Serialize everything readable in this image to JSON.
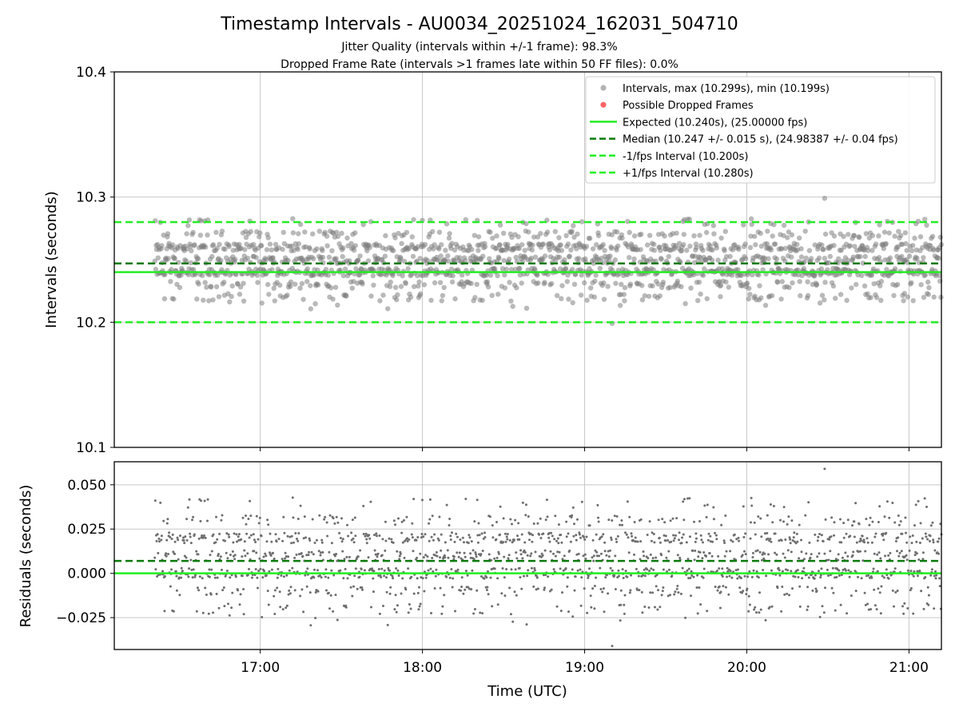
{
  "figure": {
    "title": "Timestamp Intervals - AU0034_20251024_162031_504710",
    "subtitle_jitter": "Jitter Quality (intervals within +/-1 frame): 98.3%",
    "subtitle_dropped": "Dropped Frame Rate (intervals >1 frames late within 50 FF files): 0.0%"
  },
  "colors": {
    "points": "#808080",
    "dropped": "#ff3333",
    "expected": "#22ee22",
    "median": "#0a7a0a",
    "limit": "#22ee22",
    "grid": "#c8c8c8"
  },
  "chart_data": [
    {
      "type": "scatter",
      "panel": "top",
      "ylabel": "Intervals (seconds)",
      "ylim": [
        10.1,
        10.4
      ],
      "yticks": [
        "10.1",
        "10.2",
        "10.3",
        "10.4"
      ],
      "ytick_values": [
        10.1,
        10.2,
        10.3,
        10.4
      ],
      "xlim_hours": [
        16.1,
        21.2
      ],
      "grid": true,
      "legend_position": "top-right",
      "legend": [
        {
          "label": "Intervals, max (10.299s), min (10.199s)",
          "kind": "point",
          "color": "#808080"
        },
        {
          "label": "Possible Dropped Frames",
          "kind": "point",
          "color": "#ff3333"
        },
        {
          "label": "Expected (10.240s), (25.00000 fps)",
          "kind": "solid",
          "color": "#22ee22"
        },
        {
          "label": "Median (10.247 +/- 0.015 s), (24.98387 +/- 0.04 fps)",
          "kind": "dashed",
          "color": "#0a7a0a"
        },
        {
          "label": "-1/fps Interval (10.200s)",
          "kind": "dashed",
          "color": "#22ee22"
        },
        {
          "label": "+1/fps Interval (10.280s)",
          "kind": "dashed",
          "color": "#22ee22"
        }
      ],
      "reference_lines": {
        "expected": 10.24,
        "median": 10.247,
        "minus_one_fps": 10.2,
        "plus_one_fps": 10.28
      },
      "series_summary": {
        "start_hour": 16.35,
        "end_hour": 21.2,
        "interval_seconds": 10.24,
        "max": 10.299,
        "min": 10.199,
        "levels": [
          10.22,
          10.23,
          10.24,
          10.25,
          10.26,
          10.27,
          10.28
        ],
        "level_weights": [
          6,
          10,
          28,
          22,
          24,
          7,
          3
        ]
      }
    },
    {
      "type": "scatter",
      "panel": "bottom",
      "ylabel": "Residuals (seconds)",
      "ylim": [
        -0.043,
        0.063
      ],
      "yticks": [
        "−0.025",
        "0.000",
        "0.025",
        "0.050"
      ],
      "ytick_values": [
        -0.025,
        0.0,
        0.025,
        0.05
      ],
      "xlabel": "Time (UTC)",
      "xticks": [
        "17:00",
        "18:00",
        "19:00",
        "20:00",
        "21:00"
      ],
      "xtick_hours": [
        17,
        18,
        19,
        20,
        21
      ],
      "xlim_hours": [
        16.1,
        21.2
      ],
      "grid": true,
      "reference_lines": {
        "expected": 0.0,
        "median": 0.007
      }
    }
  ]
}
